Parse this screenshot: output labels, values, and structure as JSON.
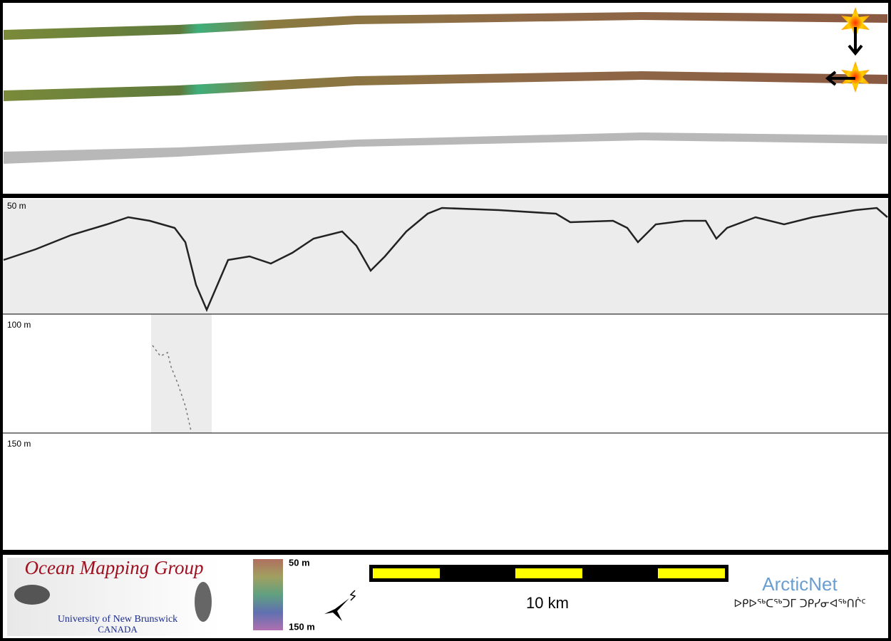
{
  "depth_labels": [
    "50 m",
    "100 m",
    "150 m"
  ],
  "logo": {
    "title": "Ocean Mapping Group",
    "university": "University of New Brunswick",
    "country": "CANADA"
  },
  "colorbar": {
    "top_label": "50 m",
    "bottom_label": "150 m"
  },
  "scale_bar": {
    "label": "10 km"
  },
  "partner": {
    "name": "ArcticNet",
    "inuktitut": "ᐅᑭᐅᖅᑕᖅᑐᒥ ᑐᑭᓯᓂᐊᖅᑎᒌᑦ"
  }
}
